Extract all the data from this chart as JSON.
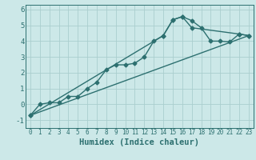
{
  "title": "",
  "xlabel": "Humidex (Indice chaleur)",
  "ylabel": "",
  "bg_color": "#cce8e8",
  "line_color": "#2d7070",
  "grid_color": "#aacece",
  "xlim": [
    -0.5,
    23.5
  ],
  "ylim": [
    -1.5,
    6.3
  ],
  "yticks": [
    -1,
    0,
    1,
    2,
    3,
    4,
    5,
    6
  ],
  "xticks": [
    0,
    1,
    2,
    3,
    4,
    5,
    6,
    7,
    8,
    9,
    10,
    11,
    12,
    13,
    14,
    15,
    16,
    17,
    18,
    19,
    20,
    21,
    22,
    23
  ],
  "line1_x": [
    0,
    1,
    2,
    3,
    4,
    5,
    6,
    7,
    8,
    9,
    10,
    11,
    12,
    13,
    14,
    15,
    16,
    17,
    18,
    19,
    20,
    21,
    22,
    23
  ],
  "line1_y": [
    -0.7,
    0.0,
    0.1,
    0.1,
    0.5,
    0.5,
    1.0,
    1.4,
    2.2,
    2.5,
    2.5,
    2.6,
    3.0,
    4.0,
    4.35,
    5.35,
    5.55,
    5.3,
    4.85,
    4.0,
    4.0,
    3.95,
    4.45,
    4.35
  ],
  "line2_x": [
    0,
    23
  ],
  "line2_y": [
    -0.7,
    4.35
  ],
  "line3_x": [
    0,
    14,
    15,
    16,
    17,
    22,
    23
  ],
  "line3_y": [
    -0.7,
    4.35,
    5.35,
    5.55,
    4.85,
    4.45,
    4.35
  ],
  "marker": "D",
  "markersize": 2.5,
  "linewidth": 1.0,
  "xlabel_fontsize": 7.5,
  "tick_fontsize": 6.5
}
